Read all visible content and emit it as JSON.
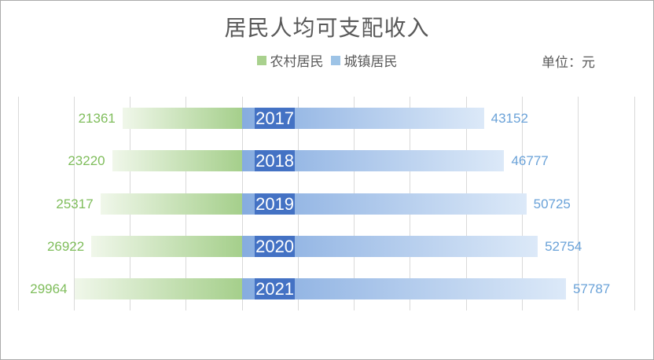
{
  "window": {
    "background": "#ffffff",
    "border_color": "#ababab"
  },
  "chart_data": {
    "type": "bar",
    "variant": "horizontal-diverging-tornado",
    "title": "居民人均可支配收入",
    "unit_label": "单位：元",
    "categories": [
      "2017",
      "2018",
      "2019",
      "2020",
      "2021"
    ],
    "series": [
      {
        "name": "农村居民",
        "side": "left",
        "values": [
          21361,
          23220,
          25317,
          26922,
          29964
        ]
      },
      {
        "name": "城镇居民",
        "side": "right",
        "values": [
          43152,
          46777,
          50725,
          52754,
          57787
        ]
      }
    ],
    "axis": {
      "left_max": 40000,
      "right_max": 70000,
      "grid_step": 10000,
      "grid": "on",
      "tick_labels": "none"
    },
    "legend_position": "top-center",
    "style": {
      "frame_background": "#ffffff",
      "frame_border": "#ababab",
      "title_color": "#595959",
      "legend_text_color": "#595959",
      "unit_text_color": "#595959",
      "grid_color": "#d9d9d9",
      "rural_swatch": "#a9d18e",
      "urban_swatch": "#9dc3e6",
      "rural_gradient_start": "#f0f7ea",
      "rural_gradient_end": "#a5cf8b",
      "urban_gradient_start": "#86ace0",
      "urban_gradient_end": "#dce9f8",
      "year_box_color": "#4472c4",
      "year_text_color": "#ffffff",
      "rural_value_color": "#7fbd5b",
      "urban_value_color": "#6aa2d8"
    }
  }
}
